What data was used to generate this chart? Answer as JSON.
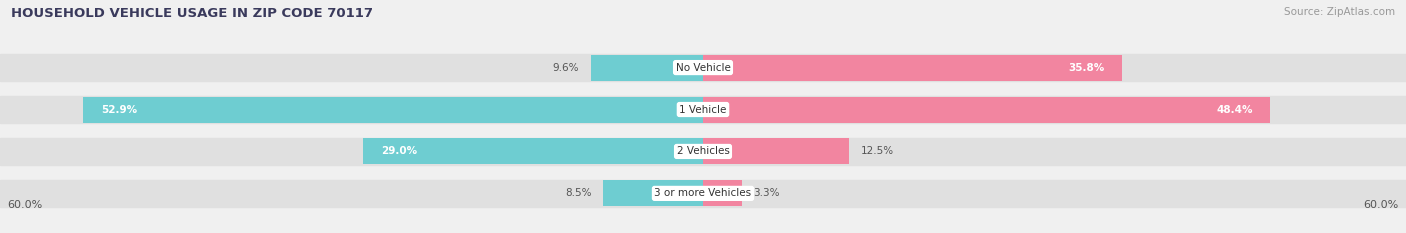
{
  "title": "HOUSEHOLD VEHICLE USAGE IN ZIP CODE 70117",
  "source": "Source: ZipAtlas.com",
  "categories": [
    "No Vehicle",
    "1 Vehicle",
    "2 Vehicles",
    "3 or more Vehicles"
  ],
  "owner_values": [
    9.6,
    52.9,
    29.0,
    8.5
  ],
  "renter_values": [
    35.8,
    48.4,
    12.5,
    3.3
  ],
  "max_val": 60.0,
  "owner_color": "#6ecdd1",
  "renter_color": "#f285a0",
  "axis_label": "60.0%",
  "bg_color": "#f0f0f0",
  "row_bg_color": "#e0e0e0",
  "title_color": "#3a3a5c",
  "source_color": "#999999",
  "label_dark": "#555555",
  "label_white": "#ffffff",
  "inner_threshold": 15.0
}
